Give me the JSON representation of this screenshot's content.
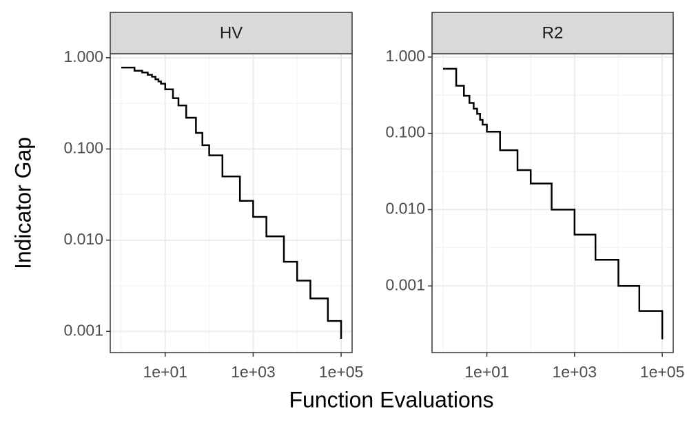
{
  "xlabel": "Function Evaluations",
  "ylabel": "Indicator Gap",
  "chart_data": [
    {
      "type": "line",
      "title": "HV",
      "step": true,
      "xscale": "log",
      "yscale": "log",
      "grid": true,
      "color": "#000000",
      "x": [
        1,
        2,
        3,
        4,
        5,
        6,
        7,
        8,
        10,
        15,
        20,
        30,
        50,
        70,
        100,
        200,
        500,
        1000,
        2000,
        5000,
        10000,
        20000,
        50000,
        100000
      ],
      "values": [
        0.78,
        0.72,
        0.69,
        0.65,
        0.62,
        0.58,
        0.55,
        0.52,
        0.45,
        0.36,
        0.3,
        0.22,
        0.15,
        0.11,
        0.085,
        0.05,
        0.027,
        0.018,
        0.011,
        0.0058,
        0.0036,
        0.0023,
        0.0013,
        0.00083
      ],
      "xlim": [
        0.5623,
        177828
      ],
      "ylim": [
        0.000586,
        1.107
      ],
      "xticks": [
        {
          "value": 10,
          "label": "1e+01"
        },
        {
          "value": 1000,
          "label": "1e+03"
        },
        {
          "value": 100000,
          "label": "1e+05"
        }
      ],
      "yticks": [
        {
          "value": 0.001,
          "label": "0.001"
        },
        {
          "value": 0.01,
          "label": "0.010"
        },
        {
          "value": 0.1,
          "label": "0.100"
        },
        {
          "value": 1,
          "label": "1.000"
        }
      ]
    },
    {
      "type": "line",
      "title": "R2",
      "step": true,
      "xscale": "log",
      "yscale": "log",
      "grid": true,
      "color": "#000000",
      "x": [
        1,
        2,
        3,
        4,
        5,
        6,
        7,
        8,
        10,
        20,
        50,
        100,
        300,
        1000,
        3000,
        10000,
        30000,
        100000
      ],
      "values": [
        0.7,
        0.42,
        0.31,
        0.25,
        0.21,
        0.18,
        0.15,
        0.13,
        0.105,
        0.06,
        0.033,
        0.022,
        0.01,
        0.0047,
        0.0022,
        0.001,
        0.00047,
        0.0002
      ],
      "xlim": [
        0.5623,
        177828
      ],
      "ylim": [
        0.000134,
        1.104
      ],
      "xticks": [
        {
          "value": 10,
          "label": "1e+01"
        },
        {
          "value": 1000,
          "label": "1e+03"
        },
        {
          "value": 100000,
          "label": "1e+05"
        }
      ],
      "yticks": [
        {
          "value": 0.001,
          "label": "0.001"
        },
        {
          "value": 0.01,
          "label": "0.010"
        },
        {
          "value": 0.1,
          "label": "0.100"
        },
        {
          "value": 1,
          "label": "1.000"
        }
      ]
    }
  ]
}
